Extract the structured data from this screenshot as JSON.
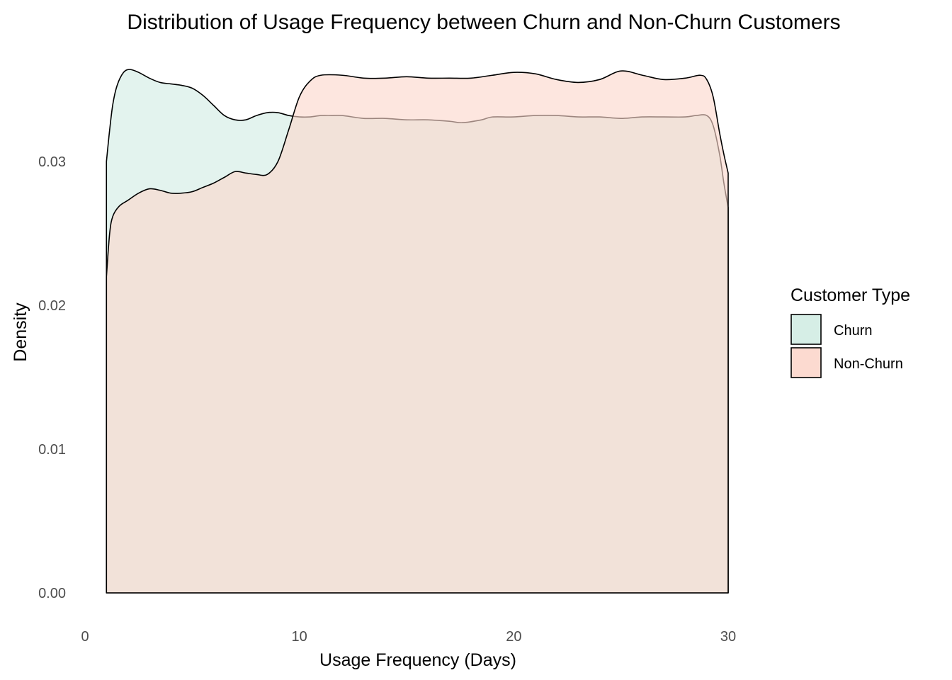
{
  "chart_data": {
    "type": "area",
    "title": "Distribution of Usage Frequency between Churn and Non-Churn Customers",
    "xlabel": "Usage Frequency (Days)",
    "ylabel": "Density",
    "xlim": [
      0,
      30
    ],
    "ylim": [
      0,
      0.036
    ],
    "x_ticks": [
      {
        "value": 0,
        "label": "0"
      },
      {
        "value": 10,
        "label": "10"
      },
      {
        "value": 20,
        "label": "20"
      },
      {
        "value": 30,
        "label": "30"
      }
    ],
    "y_ticks": [
      {
        "value": 0.0,
        "label": "0.00"
      },
      {
        "value": 0.01,
        "label": "0.01"
      },
      {
        "value": 0.02,
        "label": "0.02"
      },
      {
        "value": 0.03,
        "label": "0.03"
      }
    ],
    "grid": false,
    "legend": {
      "title": "Customer Type",
      "position": "right"
    },
    "series": [
      {
        "name": "Churn",
        "color": "#d2ece3",
        "points": [
          [
            1,
            0.03
          ],
          [
            1.15,
            0.0322
          ],
          [
            1.3,
            0.034
          ],
          [
            1.5,
            0.0353
          ],
          [
            1.8,
            0.0362
          ],
          [
            2.1,
            0.0364
          ],
          [
            2.5,
            0.0362
          ],
          [
            3.0,
            0.0358
          ],
          [
            3.5,
            0.0355
          ],
          [
            4.0,
            0.0354
          ],
          [
            4.5,
            0.0353
          ],
          [
            5.0,
            0.0351
          ],
          [
            5.5,
            0.0346
          ],
          [
            6.0,
            0.0339
          ],
          [
            6.5,
            0.0332
          ],
          [
            7.0,
            0.0329
          ],
          [
            7.5,
            0.0329
          ],
          [
            8.0,
            0.0332
          ],
          [
            8.5,
            0.0334
          ],
          [
            9.0,
            0.0334
          ],
          [
            9.5,
            0.0332
          ],
          [
            10.0,
            0.0331
          ],
          [
            10.5,
            0.0331
          ],
          [
            11.0,
            0.0332
          ],
          [
            11.5,
            0.0332
          ],
          [
            12.0,
            0.0332
          ],
          [
            13.0,
            0.033
          ],
          [
            14.0,
            0.033
          ],
          [
            15.0,
            0.0329
          ],
          [
            16.0,
            0.0329
          ],
          [
            17.0,
            0.0328
          ],
          [
            17.6,
            0.0327
          ],
          [
            18.5,
            0.0329
          ],
          [
            19.0,
            0.0331
          ],
          [
            20.0,
            0.0331
          ],
          [
            21.0,
            0.0332
          ],
          [
            22.0,
            0.0332
          ],
          [
            23.0,
            0.0331
          ],
          [
            24.0,
            0.0331
          ],
          [
            25.0,
            0.033
          ],
          [
            26.0,
            0.0331
          ],
          [
            27.0,
            0.0331
          ],
          [
            28.0,
            0.0331
          ],
          [
            28.5,
            0.0332
          ],
          [
            29.0,
            0.0332
          ],
          [
            29.3,
            0.0325
          ],
          [
            29.6,
            0.0305
          ],
          [
            29.8,
            0.0285
          ],
          [
            30.0,
            0.0268
          ]
        ]
      },
      {
        "name": "Non-Churn",
        "color": "#fcd6cb",
        "points": [
          [
            1,
            0.022
          ],
          [
            1.15,
            0.025
          ],
          [
            1.3,
            0.0262
          ],
          [
            1.6,
            0.0269
          ],
          [
            2.0,
            0.0273
          ],
          [
            2.5,
            0.0278
          ],
          [
            3.0,
            0.0281
          ],
          [
            3.5,
            0.028
          ],
          [
            4.0,
            0.0278
          ],
          [
            4.5,
            0.0278
          ],
          [
            5.0,
            0.0279
          ],
          [
            5.5,
            0.0282
          ],
          [
            6.0,
            0.0285
          ],
          [
            6.5,
            0.0289
          ],
          [
            7.0,
            0.0293
          ],
          [
            7.5,
            0.0292
          ],
          [
            8.0,
            0.0291
          ],
          [
            8.5,
            0.0291
          ],
          [
            9.0,
            0.03
          ],
          [
            9.5,
            0.0322
          ],
          [
            10.0,
            0.0345
          ],
          [
            10.5,
            0.0356
          ],
          [
            11.0,
            0.036
          ],
          [
            12.0,
            0.036
          ],
          [
            13.0,
            0.0358
          ],
          [
            14.0,
            0.0358
          ],
          [
            15.0,
            0.0359
          ],
          [
            16.0,
            0.0358
          ],
          [
            17.0,
            0.0358
          ],
          [
            18.0,
            0.0358
          ],
          [
            19.0,
            0.036
          ],
          [
            20.0,
            0.0362
          ],
          [
            21.0,
            0.0361
          ],
          [
            22.0,
            0.0357
          ],
          [
            23.0,
            0.0355
          ],
          [
            24.0,
            0.0357
          ],
          [
            25.0,
            0.0363
          ],
          [
            26.0,
            0.036
          ],
          [
            27.0,
            0.0357
          ],
          [
            28.0,
            0.0358
          ],
          [
            28.7,
            0.036
          ],
          [
            29.0,
            0.0357
          ],
          [
            29.3,
            0.0345
          ],
          [
            29.6,
            0.032
          ],
          [
            29.8,
            0.0305
          ],
          [
            30.0,
            0.0292
          ]
        ]
      }
    ]
  }
}
